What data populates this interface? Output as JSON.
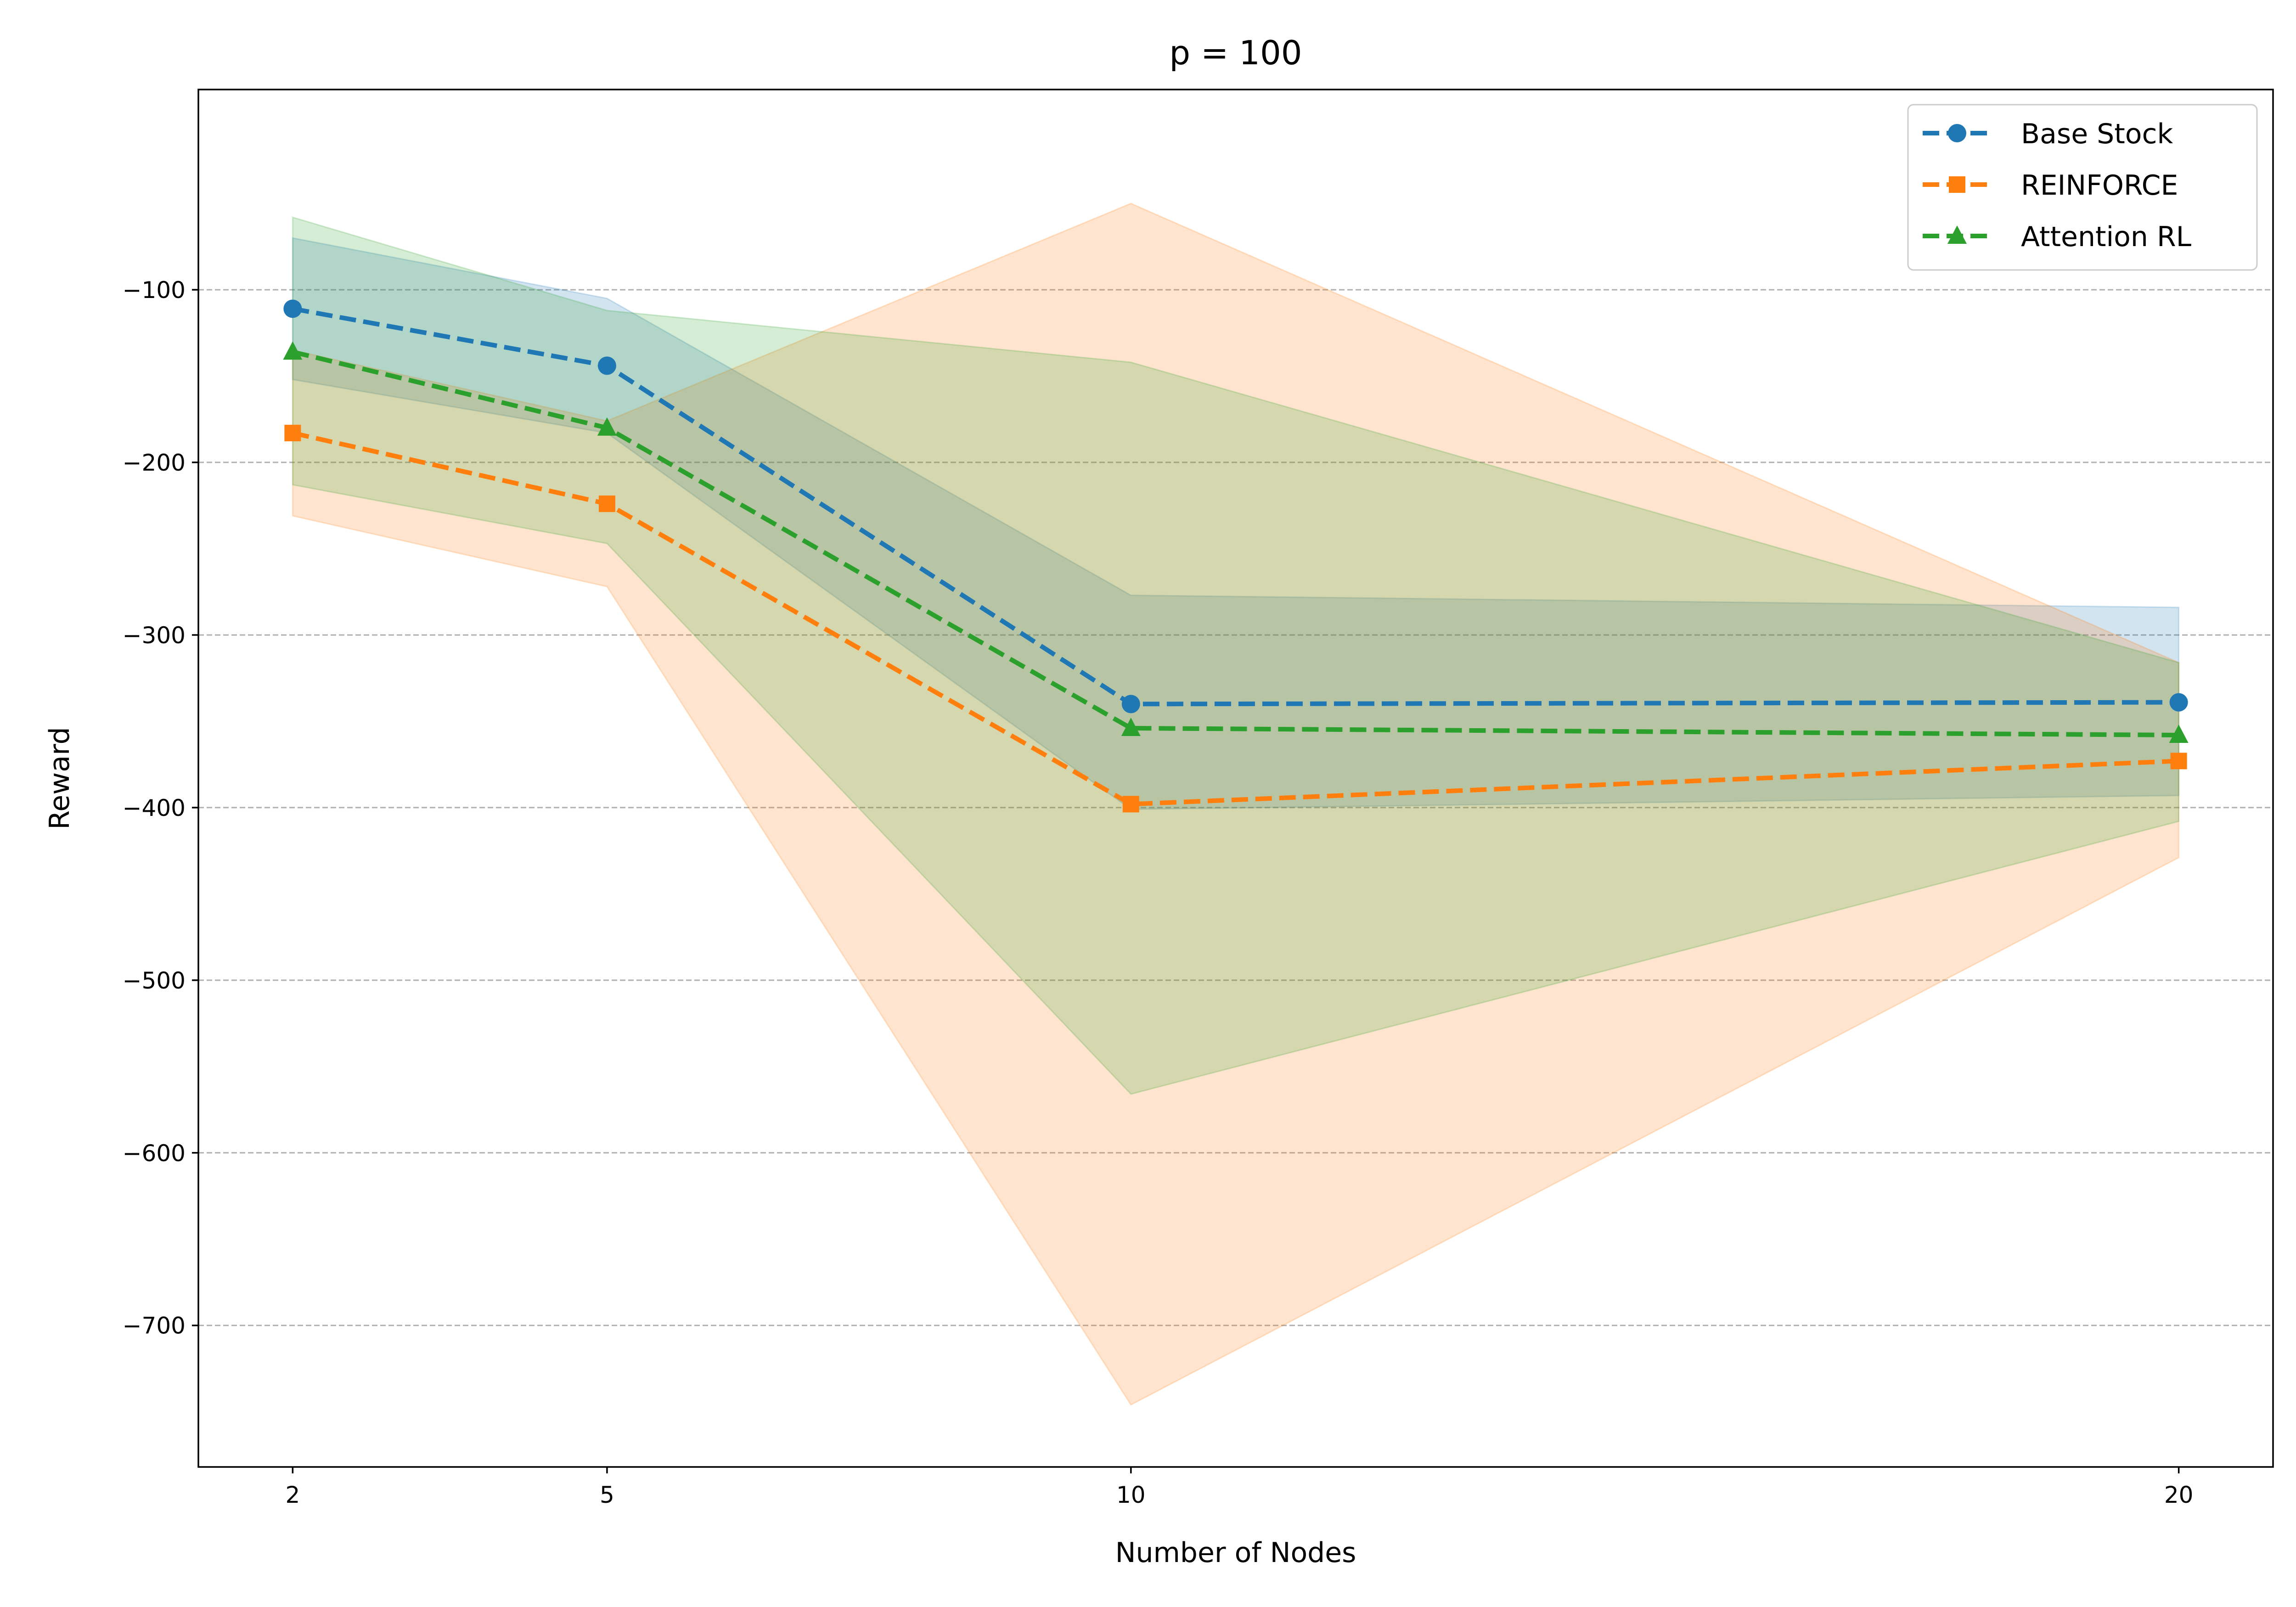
{
  "chart_data": {
    "type": "line",
    "title": "p = 100",
    "xlabel": "Number of Nodes",
    "ylabel": "Reward",
    "x": [
      2,
      5,
      10,
      20
    ],
    "xticks": [
      "2",
      "5",
      "10",
      "20"
    ],
    "yticks": [
      -100,
      -200,
      -300,
      -400,
      -500,
      -600,
      -700
    ],
    "ytick_labels": [
      "−100",
      "−200",
      "−300",
      "−400",
      "−500",
      "−600",
      "−700"
    ],
    "xlim": [
      1.1,
      20.9
    ],
    "ylim": [
      -782,
      16
    ],
    "grid": "y dashed",
    "legend_position": "top-right",
    "series": [
      {
        "name": "Base Stock",
        "color": "#1f77b4",
        "marker": "circle",
        "values": [
          -111,
          -144,
          -340,
          -339
        ],
        "upper": [
          -70,
          -105,
          -277,
          -284
        ],
        "lower": [
          -152,
          -183,
          -401,
          -393
        ]
      },
      {
        "name": "REINFORCE",
        "color": "#ff7f0e",
        "marker": "square",
        "values": [
          -183,
          -224,
          -398,
          -373
        ],
        "upper": [
          -135,
          -176,
          -50,
          -316
        ],
        "lower": [
          -231,
          -272,
          -746,
          -429
        ]
      },
      {
        "name": "Attention RL",
        "color": "#2ca02c",
        "marker": "triangle",
        "values": [
          -136,
          -180,
          -354,
          -358
        ],
        "upper": [
          -58,
          -112,
          -142,
          -316
        ],
        "lower": [
          -213,
          -247,
          -566,
          -408
        ]
      }
    ]
  }
}
